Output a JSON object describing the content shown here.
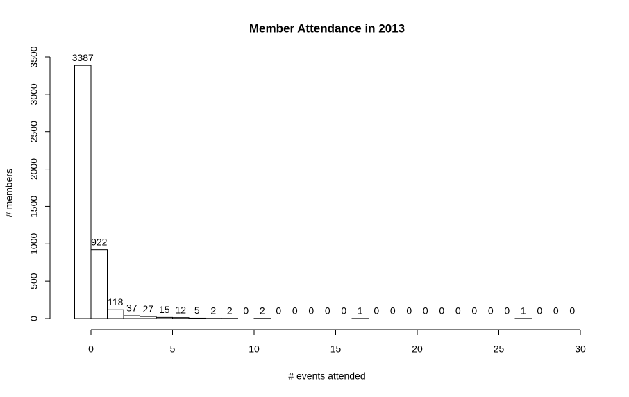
{
  "chart_data": {
    "type": "histogram",
    "title": "Member Attendance in 2013",
    "x_label": "# events attended",
    "y_label": "# members",
    "bins": [
      -1,
      0,
      1,
      2,
      3,
      4,
      5,
      6,
      7,
      8,
      9,
      10,
      11,
      12,
      13,
      14,
      15,
      16,
      17,
      18,
      19,
      20,
      21,
      22,
      23,
      24,
      25,
      26,
      27,
      28,
      29,
      30
    ],
    "values": [
      3387,
      922,
      118,
      37,
      27,
      15,
      12,
      5,
      2,
      2,
      0,
      2,
      0,
      0,
      0,
      0,
      0,
      1,
      0,
      0,
      0,
      0,
      0,
      0,
      0,
      0,
      0,
      1,
      0,
      0,
      0
    ],
    "color": "#ffffff",
    "xlim": [
      0,
      30
    ],
    "xticks": [
      0,
      5,
      10,
      15,
      20,
      25,
      30
    ],
    "ylim": [
      0,
      3500
    ],
    "yticks": [
      0,
      500,
      1000,
      1500,
      2000,
      2500,
      3000,
      3500
    ],
    "grid": false
  }
}
